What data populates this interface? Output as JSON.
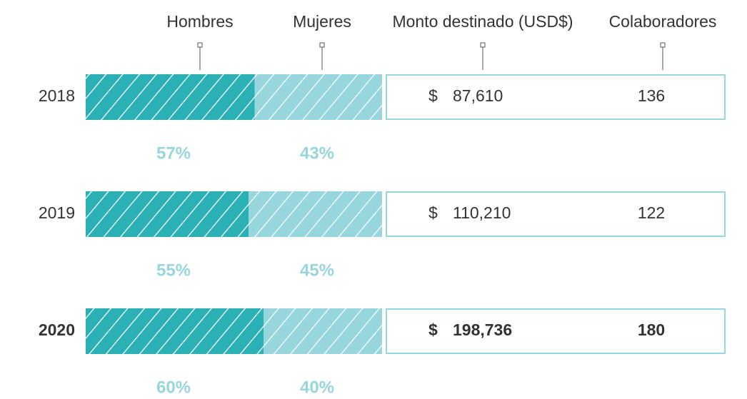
{
  "chart_data": {
    "type": "bar",
    "orientation": "horizontal",
    "stacked": true,
    "categories": [
      "2018",
      "2019",
      "2020"
    ],
    "series": [
      {
        "name": "Hombres",
        "color": "#2bb0b5",
        "values": [
          57,
          55,
          60
        ],
        "value_labels": [
          "57%",
          "55%",
          "60%"
        ]
      },
      {
        "name": "Mujeres",
        "color": "#97d6dc",
        "values": [
          43,
          45,
          40
        ],
        "value_labels": [
          "43%",
          "45%",
          "40%"
        ]
      }
    ],
    "xlim": [
      0,
      100
    ],
    "hatch": true,
    "highlight_index": 2,
    "table": {
      "columns": [
        {
          "name": "Monto destinado (USD$)",
          "prefix": "$",
          "values": [
            87610,
            110210,
            198736
          ],
          "value_labels": [
            "87,610",
            "110,210",
            "198,736"
          ]
        },
        {
          "name": "Colaboradores",
          "values": [
            136,
            122,
            180
          ]
        }
      ],
      "border_color": "#97d6dc"
    }
  }
}
